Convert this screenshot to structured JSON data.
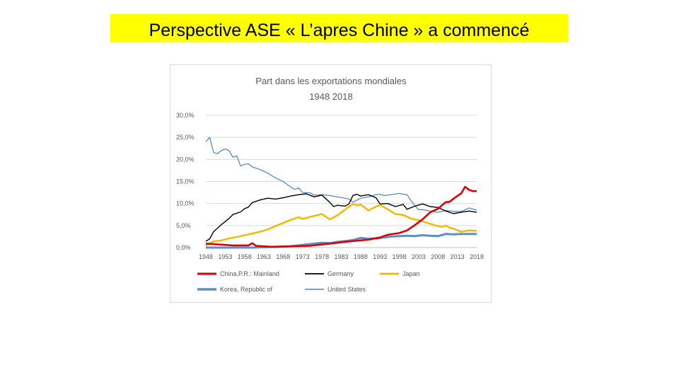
{
  "slide": {
    "title": "Perspective ASE « L’apres Chine » a commencé"
  },
  "chart_data": {
    "type": "line",
    "title": "Part dans les exportations mondiales",
    "subtitle": "1948 2018",
    "xlabel": "",
    "ylabel": "",
    "ylim": [
      0,
      30
    ],
    "xlim": [
      1948,
      2018
    ],
    "grid": true,
    "legend_position": "bottom",
    "x_tick_labels": [
      "1948",
      "1953",
      "1958",
      "1963",
      "1968",
      "1973",
      "1978",
      "1983",
      "1988",
      "1993",
      "1998",
      "2003",
      "2008",
      "2013",
      "2018"
    ],
    "y_tick_labels": [
      "0,0%",
      "5,0%",
      "10,0%",
      "15,0%",
      "20,0%",
      "25,0%",
      "30,0%"
    ],
    "series": [
      {
        "name": "China,P.R.: Mainland",
        "color": "#e00000",
        "points": [
          [
            1948,
            0.9
          ],
          [
            1950,
            0.8
          ],
          [
            1955,
            0.5
          ],
          [
            1959,
            0.5
          ],
          [
            1960,
            1.0
          ],
          [
            1961,
            0.4
          ],
          [
            1965,
            0.2
          ],
          [
            1970,
            0.3
          ],
          [
            1975,
            0.4
          ],
          [
            1978,
            0.7
          ],
          [
            1980,
            0.9
          ],
          [
            1985,
            1.4
          ],
          [
            1990,
            1.8
          ],
          [
            1993,
            2.3
          ],
          [
            1995,
            2.9
          ],
          [
            1998,
            3.3
          ],
          [
            2000,
            3.9
          ],
          [
            2002,
            5.1
          ],
          [
            2004,
            6.4
          ],
          [
            2006,
            8.0
          ],
          [
            2008,
            8.8
          ],
          [
            2009,
            9.6
          ],
          [
            2010,
            10.3
          ],
          [
            2011,
            10.4
          ],
          [
            2012,
            11.1
          ],
          [
            2013,
            11.7
          ],
          [
            2014,
            12.3
          ],
          [
            2015,
            13.8
          ],
          [
            2016,
            13.1
          ],
          [
            2017,
            12.8
          ],
          [
            2018,
            12.8
          ]
        ]
      },
      {
        "name": "Germany",
        "color": "#000000",
        "points": [
          [
            1948,
            1.4
          ],
          [
            1949,
            2.0
          ],
          [
            1950,
            3.6
          ],
          [
            1952,
            5.2
          ],
          [
            1954,
            6.6
          ],
          [
            1955,
            7.5
          ],
          [
            1957,
            8.1
          ],
          [
            1958,
            8.8
          ],
          [
            1959,
            9.2
          ],
          [
            1960,
            10.2
          ],
          [
            1962,
            10.8
          ],
          [
            1964,
            11.2
          ],
          [
            1966,
            11.0
          ],
          [
            1968,
            11.3
          ],
          [
            1970,
            11.7
          ],
          [
            1972,
            12.0
          ],
          [
            1974,
            12.2
          ],
          [
            1976,
            11.5
          ],
          [
            1978,
            11.9
          ],
          [
            1980,
            10.3
          ],
          [
            1981,
            9.3
          ],
          [
            1982,
            9.6
          ],
          [
            1984,
            9.4
          ],
          [
            1985,
            9.9
          ],
          [
            1986,
            11.8
          ],
          [
            1987,
            12.1
          ],
          [
            1988,
            11.7
          ],
          [
            1990,
            12.0
          ],
          [
            1992,
            11.3
          ],
          [
            1993,
            9.9
          ],
          [
            1995,
            10.0
          ],
          [
            1997,
            9.3
          ],
          [
            1999,
            9.8
          ],
          [
            2000,
            8.7
          ],
          [
            2002,
            9.4
          ],
          [
            2004,
            9.9
          ],
          [
            2006,
            9.3
          ],
          [
            2008,
            9.1
          ],
          [
            2010,
            8.3
          ],
          [
            2012,
            7.7
          ],
          [
            2014,
            8.0
          ],
          [
            2016,
            8.3
          ],
          [
            2018,
            8.0
          ]
        ]
      },
      {
        "name": "Japan",
        "color": "#f2b800",
        "points": [
          [
            1948,
            0.4
          ],
          [
            1950,
            1.4
          ],
          [
            1952,
            1.6
          ],
          [
            1954,
            2.1
          ],
          [
            1956,
            2.4
          ],
          [
            1958,
            2.8
          ],
          [
            1960,
            3.2
          ],
          [
            1962,
            3.6
          ],
          [
            1964,
            4.1
          ],
          [
            1966,
            4.9
          ],
          [
            1968,
            5.6
          ],
          [
            1970,
            6.3
          ],
          [
            1972,
            6.9
          ],
          [
            1973,
            6.5
          ],
          [
            1975,
            7.0
          ],
          [
            1977,
            7.4
          ],
          [
            1978,
            7.6
          ],
          [
            1980,
            6.4
          ],
          [
            1982,
            7.3
          ],
          [
            1984,
            8.6
          ],
          [
            1986,
            9.9
          ],
          [
            1987,
            9.6
          ],
          [
            1988,
            9.8
          ],
          [
            1990,
            8.4
          ],
          [
            1992,
            9.3
          ],
          [
            1993,
            9.7
          ],
          [
            1995,
            8.7
          ],
          [
            1997,
            7.6
          ],
          [
            1999,
            7.4
          ],
          [
            2001,
            6.6
          ],
          [
            2003,
            6.2
          ],
          [
            2005,
            5.7
          ],
          [
            2007,
            5.1
          ],
          [
            2009,
            4.7
          ],
          [
            2010,
            5.0
          ],
          [
            2011,
            4.5
          ],
          [
            2012,
            4.3
          ],
          [
            2014,
            3.6
          ],
          [
            2016,
            3.9
          ],
          [
            2018,
            3.8
          ]
        ]
      },
      {
        "name": "Korea, Republic of",
        "color": "#5b8fc7",
        "points": [
          [
            1948,
            0.0
          ],
          [
            1955,
            0.0
          ],
          [
            1960,
            0.0
          ],
          [
            1963,
            0.1
          ],
          [
            1968,
            0.2
          ],
          [
            1970,
            0.3
          ],
          [
            1972,
            0.5
          ],
          [
            1974,
            0.7
          ],
          [
            1976,
            0.9
          ],
          [
            1978,
            1.1
          ],
          [
            1980,
            1.0
          ],
          [
            1982,
            1.3
          ],
          [
            1984,
            1.5
          ],
          [
            1986,
            1.7
          ],
          [
            1988,
            2.2
          ],
          [
            1990,
            2.0
          ],
          [
            1992,
            2.1
          ],
          [
            1994,
            2.3
          ],
          [
            1996,
            2.5
          ],
          [
            1998,
            2.6
          ],
          [
            2000,
            2.7
          ],
          [
            2002,
            2.6
          ],
          [
            2004,
            2.8
          ],
          [
            2006,
            2.7
          ],
          [
            2008,
            2.6
          ],
          [
            2010,
            3.1
          ],
          [
            2012,
            3.0
          ],
          [
            2014,
            3.1
          ],
          [
            2016,
            3.1
          ],
          [
            2018,
            3.1
          ]
        ]
      },
      {
        "name": "United States",
        "color": "#4f81bd",
        "points": [
          [
            1948,
            24.0
          ],
          [
            1949,
            25.0
          ],
          [
            1950,
            21.6
          ],
          [
            1951,
            21.3
          ],
          [
            1952,
            22.0
          ],
          [
            1953,
            22.4
          ],
          [
            1954,
            22.0
          ],
          [
            1955,
            20.5
          ],
          [
            1956,
            20.8
          ],
          [
            1957,
            18.5
          ],
          [
            1958,
            18.9
          ],
          [
            1959,
            19.0
          ],
          [
            1960,
            18.3
          ],
          [
            1962,
            17.7
          ],
          [
            1964,
            16.9
          ],
          [
            1966,
            15.8
          ],
          [
            1968,
            15.0
          ],
          [
            1970,
            13.7
          ],
          [
            1971,
            13.2
          ],
          [
            1972,
            13.5
          ],
          [
            1973,
            12.5
          ],
          [
            1975,
            12.4
          ],
          [
            1976,
            11.9
          ],
          [
            1978,
            12.0
          ],
          [
            1980,
            11.8
          ],
          [
            1982,
            11.5
          ],
          [
            1984,
            11.2
          ],
          [
            1985,
            11.0
          ],
          [
            1986,
            10.3
          ],
          [
            1988,
            11.2
          ],
          [
            1990,
            11.5
          ],
          [
            1992,
            12.0
          ],
          [
            1993,
            12.1
          ],
          [
            1994,
            11.8
          ],
          [
            1996,
            12.0
          ],
          [
            1998,
            12.3
          ],
          [
            1999,
            12.1
          ],
          [
            2000,
            12.0
          ],
          [
            2001,
            10.7
          ],
          [
            2002,
            9.5
          ],
          [
            2003,
            8.6
          ],
          [
            2004,
            8.6
          ],
          [
            2006,
            8.3
          ],
          [
            2008,
            8.0
          ],
          [
            2010,
            8.4
          ],
          [
            2012,
            8.2
          ],
          [
            2014,
            8.2
          ],
          [
            2016,
            9.0
          ],
          [
            2018,
            8.5
          ]
        ]
      }
    ]
  }
}
